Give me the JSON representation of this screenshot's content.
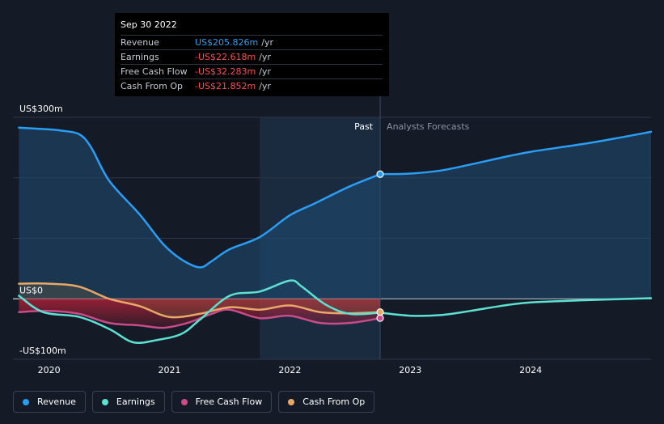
{
  "colors": {
    "revenue": "#2a9df4",
    "earnings": "#5ce1d2",
    "fcf": "#c94b8a",
    "cfo": "#e8a868",
    "negative": "#ff4d4f"
  },
  "tooltip": {
    "date": "Sep 30 2022",
    "rows": [
      {
        "label": "Revenue",
        "value": "US$205.826m",
        "unit": "/yr"
      },
      {
        "label": "Earnings",
        "value": "-US$22.618m",
        "unit": "/yr"
      },
      {
        "label": "Free Cash Flow",
        "value": "-US$32.283m",
        "unit": "/yr"
      },
      {
        "label": "Cash From Op",
        "value": "-US$21.852m",
        "unit": "/yr"
      }
    ]
  },
  "regions": {
    "past": "Past",
    "forecast": "Analysts Forecasts"
  },
  "legend": [
    {
      "label": "Revenue",
      "icon": "revenue-dot"
    },
    {
      "label": "Earnings",
      "icon": "earnings-dot"
    },
    {
      "label": "Free Cash Flow",
      "icon": "fcf-dot"
    },
    {
      "label": "Cash From Op",
      "icon": "cfo-dot"
    }
  ],
  "chart_data": {
    "type": "line",
    "ylim": [
      -100,
      300
    ],
    "xlim": [
      2019.7,
      2025.0
    ],
    "y_tick_labels": [
      {
        "value": 300,
        "label": "US$300m"
      },
      {
        "value": 0,
        "label": "US$0"
      },
      {
        "value": -100,
        "label": "-US$100m"
      }
    ],
    "x_ticks": [
      {
        "value": 2020,
        "label": "2020"
      },
      {
        "value": 2021,
        "label": "2021"
      },
      {
        "value": 2022,
        "label": "2022"
      },
      {
        "value": 2023,
        "label": "2023"
      },
      {
        "value": 2024,
        "label": "2024"
      }
    ],
    "past_end": 2022.75,
    "highlight_start": 2021.75,
    "series": [
      {
        "name": "Revenue",
        "key": "revenue",
        "fill": true,
        "points": [
          [
            2019.75,
            283
          ],
          [
            2020.0,
            280
          ],
          [
            2020.1,
            278
          ],
          [
            2020.25,
            272
          ],
          [
            2020.35,
            250
          ],
          [
            2020.5,
            195
          ],
          [
            2020.75,
            140
          ],
          [
            2020.95,
            90
          ],
          [
            2021.1,
            65
          ],
          [
            2021.25,
            52
          ],
          [
            2021.35,
            62
          ],
          [
            2021.5,
            82
          ],
          [
            2021.75,
            102
          ],
          [
            2022.0,
            138
          ],
          [
            2022.2,
            157
          ],
          [
            2022.5,
            186
          ],
          [
            2022.75,
            206
          ]
        ],
        "forecast": [
          [
            2022.75,
            206
          ],
          [
            2023.0,
            207
          ],
          [
            2023.25,
            212
          ],
          [
            2023.5,
            222
          ],
          [
            2023.75,
            233
          ],
          [
            2024.0,
            243
          ],
          [
            2024.5,
            258
          ],
          [
            2025.0,
            276
          ]
        ]
      },
      {
        "name": "Earnings",
        "key": "earnings",
        "fill": false,
        "points": [
          [
            2019.75,
            5
          ],
          [
            2019.95,
            -22
          ],
          [
            2020.25,
            -30
          ],
          [
            2020.5,
            -50
          ],
          [
            2020.7,
            -72
          ],
          [
            2020.9,
            -68
          ],
          [
            2021.1,
            -58
          ],
          [
            2021.25,
            -35
          ],
          [
            2021.5,
            5
          ],
          [
            2021.75,
            12
          ],
          [
            2022.0,
            30
          ],
          [
            2022.1,
            20
          ],
          [
            2022.3,
            -10
          ],
          [
            2022.5,
            -25
          ],
          [
            2022.75,
            -23
          ]
        ],
        "forecast": [
          [
            2022.75,
            -23
          ],
          [
            2023.0,
            -28
          ],
          [
            2023.25,
            -27
          ],
          [
            2023.5,
            -20
          ],
          [
            2023.75,
            -12
          ],
          [
            2024.0,
            -6
          ],
          [
            2024.5,
            -2
          ],
          [
            2025.0,
            1
          ]
        ]
      },
      {
        "name": "Free Cash Flow",
        "key": "fcf",
        "fill": true,
        "points": [
          [
            2019.75,
            -22
          ],
          [
            2020.0,
            -20
          ],
          [
            2020.25,
            -25
          ],
          [
            2020.5,
            -40
          ],
          [
            2020.75,
            -44
          ],
          [
            2020.95,
            -48
          ],
          [
            2021.15,
            -40
          ],
          [
            2021.35,
            -25
          ],
          [
            2021.5,
            -18
          ],
          [
            2021.75,
            -32
          ],
          [
            2022.0,
            -28
          ],
          [
            2022.25,
            -40
          ],
          [
            2022.5,
            -40
          ],
          [
            2022.75,
            -32
          ]
        ],
        "forecast": []
      },
      {
        "name": "Cash From Op",
        "key": "cfo",
        "fill": true,
        "points": [
          [
            2019.75,
            25
          ],
          [
            2020.0,
            25
          ],
          [
            2020.25,
            20
          ],
          [
            2020.5,
            0
          ],
          [
            2020.75,
            -12
          ],
          [
            2021.0,
            -30
          ],
          [
            2021.25,
            -25
          ],
          [
            2021.5,
            -14
          ],
          [
            2021.75,
            -18
          ],
          [
            2022.0,
            -11
          ],
          [
            2022.25,
            -22
          ],
          [
            2022.5,
            -24
          ],
          [
            2022.75,
            -22
          ]
        ],
        "forecast": []
      }
    ]
  }
}
